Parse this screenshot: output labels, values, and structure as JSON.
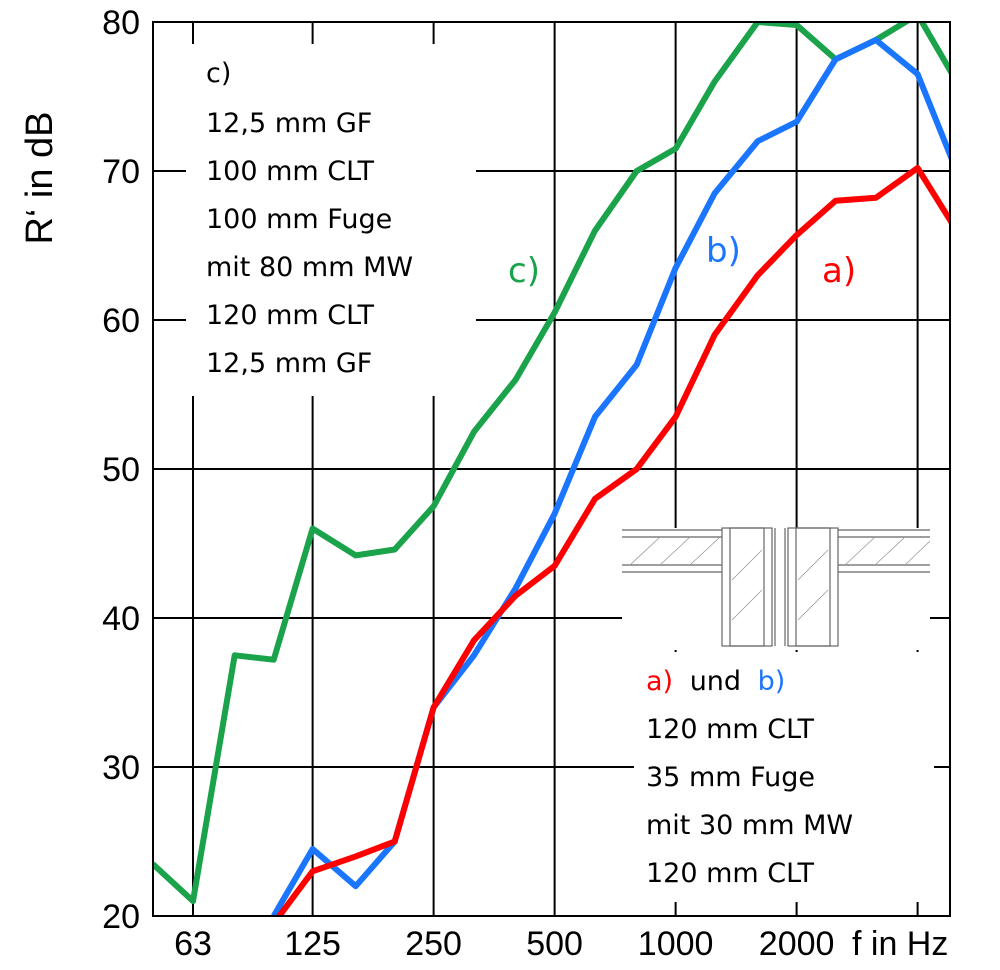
{
  "chart_data": {
    "type": "line",
    "ylabel": "R‘ in dB",
    "xlabel": "f in Hz",
    "ylim": [
      20,
      80
    ],
    "x_scale": "log",
    "x_tick_labels": [
      "63",
      "125",
      "250",
      "500",
      "1000",
      "2000"
    ],
    "y_tick_labels": [
      "20",
      "30",
      "40",
      "50",
      "60",
      "70",
      "80"
    ],
    "grid": true,
    "x": [
      50,
      63,
      80,
      100,
      125,
      160,
      200,
      250,
      315,
      400,
      500,
      630,
      800,
      1000,
      1250,
      1600,
      2000,
      2500,
      3150,
      4000,
      5000
    ],
    "series": [
      {
        "name": "a)",
        "color": "#ff0000",
        "values": [
          null,
          null,
          null,
          19.5,
          23,
          24,
          25,
          34,
          38.5,
          41.5,
          43.5,
          48,
          50,
          53.5,
          59,
          63,
          65.7,
          68,
          68.2,
          70.2,
          66
        ]
      },
      {
        "name": "b)",
        "color": "#1a75ff",
        "values": [
          null,
          null,
          null,
          20,
          24.5,
          22,
          25,
          34,
          37.5,
          42,
          47,
          53.5,
          57,
          63.5,
          68.5,
          72,
          73.3,
          77.5,
          78.8,
          76.5,
          70
        ]
      },
      {
        "name": "c)",
        "color": "#1aa34a",
        "values": [
          23.5,
          21,
          37.5,
          37.2,
          46,
          44.2,
          44.6,
          47.5,
          52.5,
          56,
          60.5,
          66,
          70,
          71.5,
          76,
          80,
          79.8,
          77.5,
          78.8,
          80.5,
          76
        ]
      }
    ],
    "legend_c": {
      "heading": "c)",
      "lines": [
        "12,5 mm GF",
        "100 mm CLT",
        "100 mm Fuge",
        "mit 80 mm MW",
        "120 mm CLT",
        "12,5 mm GF"
      ]
    },
    "legend_ab": {
      "heading_a": "a)",
      "heading_und": "und",
      "heading_b": "b)",
      "lines": [
        "120 mm CLT",
        "35 mm Fuge",
        "mit 30 mm MW",
        "120 mm CLT"
      ]
    },
    "colors": {
      "a": "#ff0000",
      "b": "#1a75ff",
      "c": "#1aa34a"
    }
  }
}
